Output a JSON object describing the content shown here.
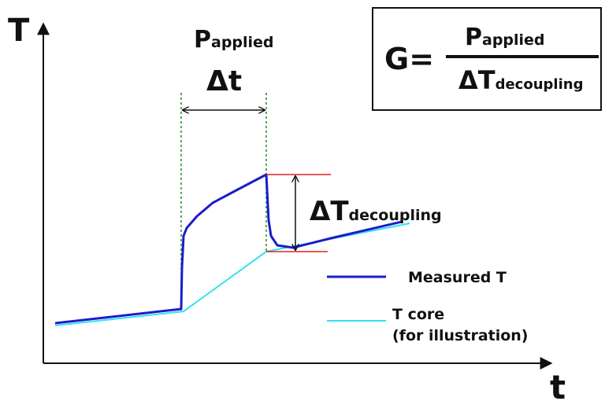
{
  "axes": {
    "y_label": "T",
    "x_label": "t"
  },
  "annotations": {
    "power": {
      "main": "P",
      "sub": "applied"
    },
    "interval": "Δt",
    "delta": {
      "main": "ΔT",
      "sub": "decoupling"
    }
  },
  "formula": {
    "lhs": "G=",
    "numerator": {
      "main": "P",
      "sub": "applied"
    },
    "denominator": {
      "main": "ΔT",
      "sub": "decoupling"
    }
  },
  "legend": [
    {
      "lines": [
        "Measured T"
      ],
      "color": "#1c1ccc"
    },
    {
      "lines": [
        "T core",
        "(for illustration)"
      ],
      "color": "#33e0f0"
    }
  ]
}
